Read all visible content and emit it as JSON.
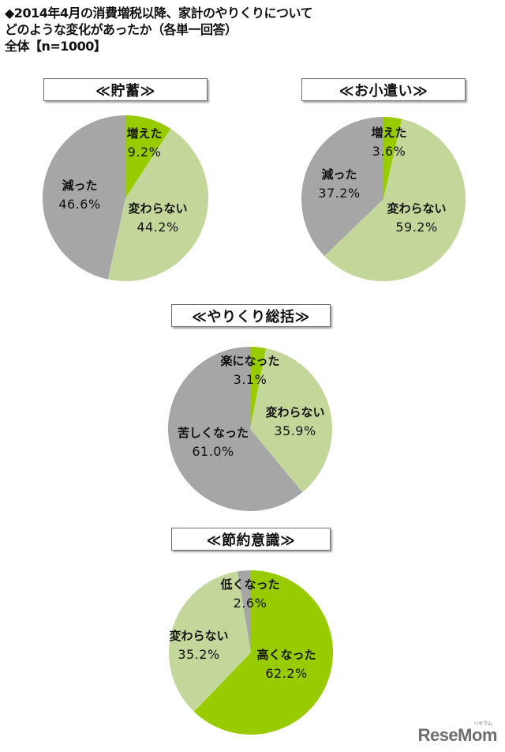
{
  "header": {
    "line1": "◆2014年4月の消費増税以降、家計のやりくりについて",
    "line2": "どのような変化があったか（各単一回答）",
    "line3": "全体【n=1000】"
  },
  "colors": {
    "bright_green": "#99cc00",
    "light_green": "#c4d79b",
    "gray": "#a6a6a6",
    "border": "#6e6e6e"
  },
  "watermark": {
    "text": "ReseMom",
    "ruby": "リセマム"
  },
  "chart_data": [
    {
      "type": "pie",
      "title": "≪貯蓄≫",
      "categories": [
        "増えた",
        "変わらない",
        "減った"
      ],
      "values": [
        9.2,
        44.2,
        46.6
      ],
      "labels": [
        "9.2%",
        "44.2%",
        "46.6%"
      ],
      "colors": [
        "#99cc00",
        "#c4d79b",
        "#a6a6a6"
      ],
      "start_angle": "12 o'clock, clockwise"
    },
    {
      "type": "pie",
      "title": "≪お小遣い≫",
      "categories": [
        "増えた",
        "変わらない",
        "減った"
      ],
      "values": [
        3.6,
        59.2,
        37.2
      ],
      "labels": [
        "3.6%",
        "59.2%",
        "37.2%"
      ],
      "colors": [
        "#99cc00",
        "#c4d79b",
        "#a6a6a6"
      ],
      "start_angle": "12 o'clock, clockwise"
    },
    {
      "type": "pie",
      "title": "≪やりくり総括≫",
      "categories": [
        "楽になった",
        "変わらない",
        "苦しくなった"
      ],
      "values": [
        3.1,
        35.9,
        61.0
      ],
      "labels": [
        "3.1%",
        "35.9%",
        "61.0%"
      ],
      "colors": [
        "#99cc00",
        "#c4d79b",
        "#a6a6a6"
      ],
      "start_angle": "12 o'clock, clockwise"
    },
    {
      "type": "pie",
      "title": "≪節約意識≫",
      "categories": [
        "高くなった",
        "変わらない",
        "低くなった"
      ],
      "values": [
        62.2,
        35.2,
        2.6
      ],
      "labels": [
        "62.2%",
        "35.2%",
        "2.6%"
      ],
      "colors": [
        "#99cc00",
        "#c4d79b",
        "#a6a6a6"
      ],
      "start_angle": "12 o'clock, clockwise"
    }
  ]
}
